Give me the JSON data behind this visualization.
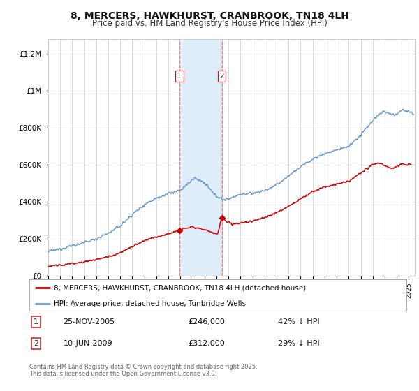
{
  "title": "8, MERCERS, HAWKHURST, CRANBROOK, TN18 4LH",
  "subtitle": "Price paid vs. HM Land Registry's House Price Index (HPI)",
  "title_fontsize": 10,
  "subtitle_fontsize": 8.5,
  "ylabel_ticks": [
    "£0",
    "£200K",
    "£400K",
    "£600K",
    "£800K",
    "£1M",
    "£1.2M"
  ],
  "ytick_values": [
    0,
    200000,
    400000,
    600000,
    800000,
    1000000,
    1200000
  ],
  "ylim": [
    0,
    1280000
  ],
  "xlim_start": 1995.0,
  "xlim_end": 2025.5,
  "x_year_start": 1995,
  "x_year_end": 2025,
  "purchase1_date": "25-NOV-2005",
  "purchase1_price": 246000,
  "purchase1_label": "42% ↓ HPI",
  "purchase1_x": 2005.9,
  "purchase2_date": "10-JUN-2009",
  "purchase2_price": 312000,
  "purchase2_label": "29% ↓ HPI",
  "purchase2_x": 2009.44,
  "shaded_region_x1": 2005.9,
  "shaded_region_x2": 2009.44,
  "legend_label1": "8, MERCERS, HAWKHURST, CRANBROOK, TN18 4LH (detached house)",
  "legend_label2": "HPI: Average price, detached house, Tunbridge Wells",
  "footer_line1": "Contains HM Land Registry data © Crown copyright and database right 2025.",
  "footer_line2": "This data is licensed under the Open Government Licence v3.0.",
  "red_color": "#cc0000",
  "blue_color": "#6699cc",
  "shaded_color": "#deedf8",
  "grid_color": "#cccccc",
  "background_color": "#ffffff",
  "dash_color": "#e87070"
}
